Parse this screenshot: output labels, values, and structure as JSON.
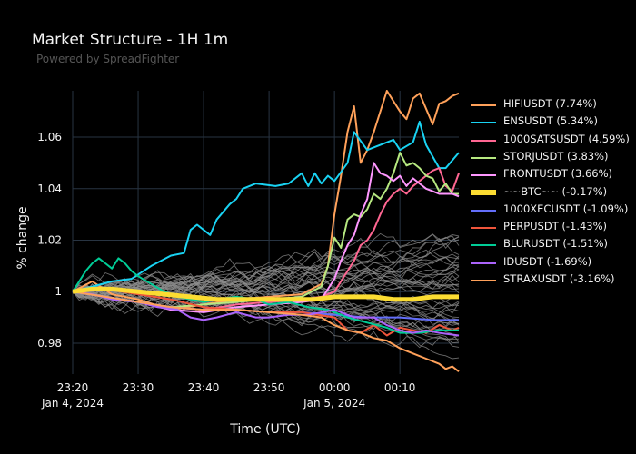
{
  "header": {
    "title": "Market Structure - 1H 1m",
    "subtitle": "Powered by SpreadFighter"
  },
  "colors": {
    "background": "#000000",
    "grid": "#283442",
    "background_lines": "#8c8c8c"
  },
  "chart_data": {
    "type": "line",
    "title": "Market Structure - 1H 1m",
    "xlabel": "Time (UTC)",
    "ylabel": "% change",
    "ylim": [
      0.968,
      1.078
    ],
    "xlim_minutes": [
      0,
      59
    ],
    "yticks": [
      {
        "value": 0.98,
        "label": "0.98"
      },
      {
        "value": 1.0,
        "label": "1"
      },
      {
        "value": 1.02,
        "label": "1.02"
      },
      {
        "value": 1.04,
        "label": "1.04"
      },
      {
        "value": 1.06,
        "label": "1.06"
      }
    ],
    "xticks": [
      {
        "minute": 0,
        "label": "23:20",
        "sublabel": "Jan 4, 2024"
      },
      {
        "minute": 10,
        "label": "23:30",
        "sublabel": ""
      },
      {
        "minute": 20,
        "label": "23:40",
        "sublabel": ""
      },
      {
        "minute": 30,
        "label": "23:50",
        "sublabel": ""
      },
      {
        "minute": 40,
        "label": "00:00",
        "sublabel": "Jan 5, 2024"
      },
      {
        "minute": 50,
        "label": "00:10",
        "sublabel": ""
      }
    ],
    "legend_position": "right",
    "background_series_count": 44,
    "series": [
      {
        "name": "HIFIUSDT (7.74%)",
        "color": "#ffa15a",
        "points": [
          [
            0,
            1.0
          ],
          [
            3,
            1.004
          ],
          [
            6,
            0.999
          ],
          [
            10,
            0.997
          ],
          [
            15,
            0.993
          ],
          [
            20,
            0.995
          ],
          [
            25,
            0.997
          ],
          [
            30,
            0.998
          ],
          [
            35,
            0.999
          ],
          [
            38,
            1.003
          ],
          [
            39,
            1.01
          ],
          [
            40,
            1.03
          ],
          [
            41,
            1.045
          ],
          [
            42,
            1.062
          ],
          [
            43,
            1.072
          ],
          [
            44,
            1.05
          ],
          [
            45,
            1.055
          ],
          [
            46,
            1.062
          ],
          [
            48,
            1.078
          ],
          [
            50,
            1.07
          ],
          [
            51,
            1.067
          ],
          [
            52,
            1.075
          ],
          [
            53,
            1.077
          ],
          [
            55,
            1.065
          ],
          [
            56,
            1.073
          ],
          [
            57,
            1.074
          ],
          [
            58,
            1.076
          ],
          [
            59,
            1.077
          ]
        ]
      },
      {
        "name": "ENSUSDT (5.34%)",
        "color": "#19d3f3",
        "points": [
          [
            0,
            1.0
          ],
          [
            3,
            1.002
          ],
          [
            6,
            1.004
          ],
          [
            9,
            1.005
          ],
          [
            12,
            1.01
          ],
          [
            15,
            1.014
          ],
          [
            17,
            1.015
          ],
          [
            18,
            1.024
          ],
          [
            19,
            1.026
          ],
          [
            21,
            1.022
          ],
          [
            22,
            1.028
          ],
          [
            24,
            1.034
          ],
          [
            25,
            1.036
          ],
          [
            26,
            1.04
          ],
          [
            28,
            1.042
          ],
          [
            31,
            1.041
          ],
          [
            33,
            1.042
          ],
          [
            35,
            1.046
          ],
          [
            36,
            1.041
          ],
          [
            37,
            1.046
          ],
          [
            38,
            1.042
          ],
          [
            39,
            1.045
          ],
          [
            40,
            1.043
          ],
          [
            42,
            1.05
          ],
          [
            43,
            1.062
          ],
          [
            45,
            1.055
          ],
          [
            47,
            1.057
          ],
          [
            49,
            1.059
          ],
          [
            50,
            1.055
          ],
          [
            52,
            1.058
          ],
          [
            53,
            1.066
          ],
          [
            54,
            1.057
          ],
          [
            56,
            1.048
          ],
          [
            57,
            1.048
          ],
          [
            59,
            1.054
          ]
        ]
      },
      {
        "name": "1000SATSUSDT (4.59%)",
        "color": "#ff6692",
        "points": [
          [
            0,
            1.0
          ],
          [
            5,
            0.998
          ],
          [
            10,
            0.996
          ],
          [
            15,
            0.994
          ],
          [
            20,
            0.993
          ],
          [
            25,
            0.995
          ],
          [
            30,
            0.996
          ],
          [
            35,
            0.997
          ],
          [
            38,
            0.998
          ],
          [
            40,
            1.0
          ],
          [
            41,
            1.004
          ],
          [
            42,
            1.008
          ],
          [
            43,
            1.012
          ],
          [
            44,
            1.018
          ],
          [
            45,
            1.02
          ],
          [
            46,
            1.024
          ],
          [
            47,
            1.03
          ],
          [
            48,
            1.035
          ],
          [
            49,
            1.038
          ],
          [
            50,
            1.04
          ],
          [
            51,
            1.038
          ],
          [
            52,
            1.041
          ],
          [
            53,
            1.043
          ],
          [
            54,
            1.045
          ],
          [
            55,
            1.047
          ],
          [
            56,
            1.048
          ],
          [
            57,
            1.041
          ],
          [
            58,
            1.039
          ],
          [
            59,
            1.046
          ]
        ]
      },
      {
        "name": "STORJUSDT (3.83%)",
        "color": "#b6e880",
        "points": [
          [
            0,
            1.0
          ],
          [
            5,
            0.998
          ],
          [
            10,
            0.996
          ],
          [
            15,
            0.994
          ],
          [
            20,
            0.995
          ],
          [
            25,
            0.996
          ],
          [
            30,
            0.997
          ],
          [
            35,
            0.998
          ],
          [
            38,
            1.002
          ],
          [
            39,
            1.01
          ],
          [
            40,
            1.021
          ],
          [
            41,
            1.017
          ],
          [
            42,
            1.028
          ],
          [
            43,
            1.03
          ],
          [
            44,
            1.029
          ],
          [
            45,
            1.032
          ],
          [
            46,
            1.038
          ],
          [
            47,
            1.036
          ],
          [
            48,
            1.04
          ],
          [
            49,
            1.046
          ],
          [
            50,
            1.054
          ],
          [
            51,
            1.049
          ],
          [
            52,
            1.05
          ],
          [
            53,
            1.048
          ],
          [
            54,
            1.045
          ],
          [
            55,
            1.044
          ],
          [
            56,
            1.039
          ],
          [
            57,
            1.042
          ],
          [
            58,
            1.038
          ],
          [
            59,
            1.038
          ]
        ]
      },
      {
        "name": "FRONTUSDT (3.66%)",
        "color": "#ff97ff",
        "points": [
          [
            0,
            1.0
          ],
          [
            5,
            0.998
          ],
          [
            10,
            0.996
          ],
          [
            15,
            0.993
          ],
          [
            20,
            0.992
          ],
          [
            25,
            0.994
          ],
          [
            30,
            0.995
          ],
          [
            35,
            0.996
          ],
          [
            38,
            0.997
          ],
          [
            40,
            1.005
          ],
          [
            41,
            1.012
          ],
          [
            42,
            1.018
          ],
          [
            43,
            1.022
          ],
          [
            44,
            1.03
          ],
          [
            45,
            1.036
          ],
          [
            46,
            1.05
          ],
          [
            47,
            1.046
          ],
          [
            48,
            1.045
          ],
          [
            49,
            1.043
          ],
          [
            50,
            1.045
          ],
          [
            51,
            1.041
          ],
          [
            52,
            1.044
          ],
          [
            53,
            1.042
          ],
          [
            54,
            1.04
          ],
          [
            55,
            1.039
          ],
          [
            56,
            1.038
          ],
          [
            57,
            1.038
          ],
          [
            58,
            1.038
          ],
          [
            59,
            1.037
          ]
        ]
      },
      {
        "name": "~~BTC~~ (-0.17%)",
        "color": "#fbdc32",
        "width": 5,
        "points": [
          [
            0,
            1.0
          ],
          [
            3,
            1.001
          ],
          [
            6,
            1.001
          ],
          [
            10,
            1.0
          ],
          [
            14,
            0.999
          ],
          [
            18,
            0.998
          ],
          [
            22,
            0.997
          ],
          [
            26,
            0.997
          ],
          [
            30,
            0.997
          ],
          [
            34,
            0.997
          ],
          [
            37,
            0.997
          ],
          [
            40,
            0.998
          ],
          [
            43,
            0.998
          ],
          [
            46,
            0.998
          ],
          [
            49,
            0.997
          ],
          [
            52,
            0.997
          ],
          [
            55,
            0.998
          ],
          [
            59,
            0.998
          ]
        ]
      },
      {
        "name": "1000XECUSDT (-1.09%)",
        "color": "#636efa",
        "points": [
          [
            0,
            1.0
          ],
          [
            5,
            0.998
          ],
          [
            10,
            0.996
          ],
          [
            15,
            0.994
          ],
          [
            20,
            0.993
          ],
          [
            25,
            0.993
          ],
          [
            30,
            0.992
          ],
          [
            35,
            0.992
          ],
          [
            40,
            0.991
          ],
          [
            45,
            0.99
          ],
          [
            50,
            0.99
          ],
          [
            55,
            0.989
          ],
          [
            59,
            0.989
          ]
        ]
      },
      {
        "name": "PERPUSDT (-1.43%)",
        "color": "#ef553b",
        "points": [
          [
            0,
            1.0
          ],
          [
            5,
            1.001
          ],
          [
            10,
            0.999
          ],
          [
            15,
            0.997
          ],
          [
            20,
            0.994
          ],
          [
            25,
            0.993
          ],
          [
            30,
            0.992
          ],
          [
            35,
            0.992
          ],
          [
            40,
            0.99
          ],
          [
            42,
            0.985
          ],
          [
            44,
            0.984
          ],
          [
            46,
            0.987
          ],
          [
            48,
            0.983
          ],
          [
            50,
            0.986
          ],
          [
            52,
            0.985
          ],
          [
            54,
            0.984
          ],
          [
            56,
            0.987
          ],
          [
            58,
            0.985
          ],
          [
            59,
            0.986
          ]
        ]
      },
      {
        "name": "BLURUSDT (-1.51%)",
        "color": "#00cc96",
        "points": [
          [
            0,
            1.0
          ],
          [
            1,
            1.004
          ],
          [
            2,
            1.008
          ],
          [
            3,
            1.011
          ],
          [
            4,
            1.013
          ],
          [
            5,
            1.011
          ],
          [
            6,
            1.009
          ],
          [
            7,
            1.013
          ],
          [
            8,
            1.011
          ],
          [
            9,
            1.008
          ],
          [
            10,
            1.006
          ],
          [
            12,
            1.003
          ],
          [
            14,
            1.0
          ],
          [
            16,
            0.998
          ],
          [
            18,
            0.997
          ],
          [
            20,
            0.996
          ],
          [
            22,
            0.997
          ],
          [
            25,
            0.998
          ],
          [
            28,
            0.997
          ],
          [
            30,
            0.995
          ],
          [
            33,
            0.996
          ],
          [
            36,
            0.994
          ],
          [
            39,
            0.993
          ],
          [
            42,
            0.99
          ],
          [
            45,
            0.988
          ],
          [
            48,
            0.986
          ],
          [
            50,
            0.984
          ],
          [
            53,
            0.984
          ],
          [
            56,
            0.985
          ],
          [
            59,
            0.985
          ]
        ]
      },
      {
        "name": "IDUSDT (-1.69%)",
        "color": "#ab63fa",
        "points": [
          [
            0,
            1.0
          ],
          [
            3,
            0.999
          ],
          [
            6,
            0.997
          ],
          [
            10,
            0.996
          ],
          [
            13,
            0.994
          ],
          [
            16,
            0.993
          ],
          [
            18,
            0.99
          ],
          [
            20,
            0.989
          ],
          [
            22,
            0.99
          ],
          [
            25,
            0.992
          ],
          [
            28,
            0.99
          ],
          [
            30,
            0.99
          ],
          [
            33,
            0.991
          ],
          [
            36,
            0.991
          ],
          [
            40,
            0.993
          ],
          [
            43,
            0.99
          ],
          [
            46,
            0.99
          ],
          [
            48,
            0.987
          ],
          [
            50,
            0.985
          ],
          [
            52,
            0.984
          ],
          [
            54,
            0.985
          ],
          [
            56,
            0.984
          ],
          [
            59,
            0.983
          ]
        ]
      },
      {
        "name": "STRAXUSDT (-3.16%)",
        "color": "#ffa15a",
        "points": [
          [
            0,
            1.0
          ],
          [
            5,
            0.998
          ],
          [
            10,
            0.996
          ],
          [
            15,
            0.994
          ],
          [
            20,
            0.993
          ],
          [
            25,
            0.993
          ],
          [
            30,
            0.992
          ],
          [
            35,
            0.991
          ],
          [
            38,
            0.99
          ],
          [
            40,
            0.987
          ],
          [
            42,
            0.985
          ],
          [
            44,
            0.984
          ],
          [
            46,
            0.982
          ],
          [
            48,
            0.981
          ],
          [
            50,
            0.978
          ],
          [
            52,
            0.976
          ],
          [
            54,
            0.974
          ],
          [
            56,
            0.972
          ],
          [
            57,
            0.97
          ],
          [
            58,
            0.971
          ],
          [
            59,
            0.969
          ]
        ]
      }
    ]
  }
}
